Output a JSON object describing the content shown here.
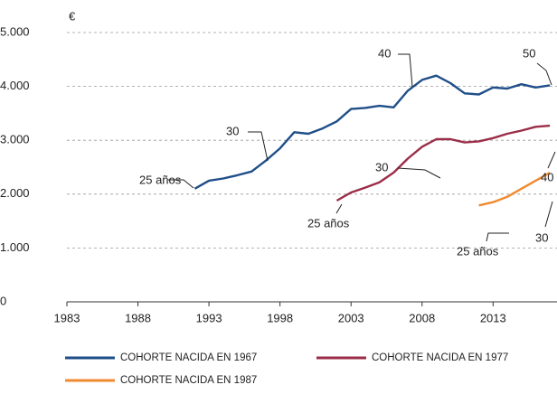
{
  "chart_data": {
    "type": "line",
    "y_label": "€",
    "x": [
      1992,
      1993,
      1994,
      1995,
      1996,
      1997,
      1998,
      1999,
      2000,
      2001,
      2002,
      2003,
      2004,
      2005,
      2006,
      2007,
      2008,
      2009,
      2010,
      2011,
      2012,
      2013,
      2014,
      2015,
      2016,
      2017
    ],
    "series": [
      {
        "name": "COHORTE NACIDA EN 1967",
        "color": "#1f4e89",
        "values": [
          2100,
          2250,
          2290,
          2350,
          2420,
          2620,
          2850,
          3150,
          3120,
          3220,
          3350,
          3580,
          3600,
          3640,
          3610,
          3920,
          4120,
          4200,
          4060,
          3870,
          3850,
          3980,
          3960,
          4040,
          3980,
          4020
        ]
      },
      {
        "name": "COHORTE NACIDA EN 1977",
        "color": "#9b2d48",
        "values": [
          null,
          null,
          null,
          null,
          null,
          null,
          null,
          null,
          null,
          null,
          1880,
          2030,
          2120,
          2220,
          2400,
          2660,
          2880,
          3020,
          3020,
          2960,
          2980,
          3040,
          3120,
          3180,
          3250,
          3270
        ]
      },
      {
        "name": "COHORTE NACIDA EN 1987",
        "color": "#f08a30",
        "values": [
          null,
          null,
          null,
          null,
          null,
          null,
          null,
          null,
          null,
          null,
          null,
          null,
          null,
          null,
          null,
          null,
          null,
          null,
          null,
          null,
          1790,
          1850,
          1950,
          2100,
          2250,
          2400
        ]
      }
    ],
    "xlim": [
      1983,
      2017.5
    ],
    "xticks": [
      1983,
      1988,
      1993,
      1998,
      2003,
      2008,
      2013
    ],
    "ylim": [
      0,
      5000
    ],
    "yticks": [
      0,
      {
        "value": 1000,
        "label": "1.000"
      },
      {
        "value": 2000,
        "label": "2.000"
      },
      {
        "value": 3000,
        "label": "3.000"
      },
      {
        "value": 4000,
        "label": "4.000"
      },
      {
        "value": 5000,
        "label": "5.000"
      }
    ],
    "grid": true,
    "annotations": [
      "25 años",
      "30",
      "40",
      "50",
      "25 años",
      "30",
      "40",
      "25 años",
      "30"
    ]
  }
}
